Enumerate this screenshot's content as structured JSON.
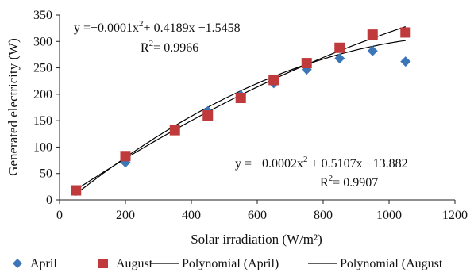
{
  "chart_data": {
    "type": "scatter",
    "xlabel": "Solar irradiation (W/m²)",
    "ylabel": "Generated electricity (W)",
    "xlim": [
      0,
      1200
    ],
    "ylim": [
      0,
      350
    ],
    "x_ticks": [
      0,
      200,
      400,
      600,
      800,
      1000,
      1200
    ],
    "y_ticks": [
      0,
      50,
      100,
      150,
      200,
      250,
      300,
      350
    ],
    "grid": false,
    "legend_position": "bottom",
    "series": [
      {
        "name": "April",
        "marker": "diamond",
        "color": "#3a76b8",
        "x": [
          50,
          200,
          350,
          450,
          550,
          650,
          750,
          850,
          950,
          1050
        ],
        "y": [
          17,
          71,
          133,
          168,
          198,
          221,
          247,
          268,
          282,
          262
        ]
      },
      {
        "name": "August",
        "marker": "square",
        "color": "#c0393b",
        "x": [
          50,
          200,
          350,
          450,
          550,
          650,
          750,
          850,
          950,
          1050
        ],
        "y": [
          18,
          83,
          132,
          160,
          193,
          227,
          259,
          288,
          313,
          317
        ]
      }
    ],
    "trendlines": [
      {
        "name": "Polynomial (April)",
        "coefficients": [
          -0.0002,
          0.5107,
          -13.882
        ],
        "x_range": [
          50,
          1050
        ],
        "equation": "y = −0.0002x² + 0.5107x −13.882",
        "r2_label": "R²= 0.9907",
        "color": "#000000"
      },
      {
        "name": "Polynomial (August)",
        "coefficients": [
          -0.0001,
          0.4189,
          -1.5458
        ],
        "x_range": [
          50,
          1050
        ],
        "equation": "y =−0.0001x²+ 0.4189x −1.5458",
        "r2_label": "R²= 0.9966",
        "color": "#000000"
      }
    ],
    "annotations": [
      {
        "ref": "august_eq",
        "parts": [
          "y =−0.0001x",
          "2",
          "+ 0.4189x −1.5458"
        ]
      },
      {
        "ref": "august_r2",
        "parts": [
          "R",
          "2",
          "= 0.9966"
        ]
      },
      {
        "ref": "april_eq",
        "parts": [
          "y = −0.0002x",
          "2",
          " + 0.5107x −13.882"
        ]
      },
      {
        "ref": "april_r2",
        "parts": [
          "R",
          "2",
          "= 0.9907"
        ]
      }
    ],
    "legend": [
      {
        "label": "April",
        "symbol": "diamond",
        "color": "#3a76b8"
      },
      {
        "label": "August",
        "symbol": "square",
        "color": "#c0393b"
      },
      {
        "label": "Polynomial (April)",
        "symbol": "line",
        "color": "#000000"
      },
      {
        "label": "Polynomial (August",
        "symbol": "line",
        "color": "#000000"
      }
    ]
  }
}
